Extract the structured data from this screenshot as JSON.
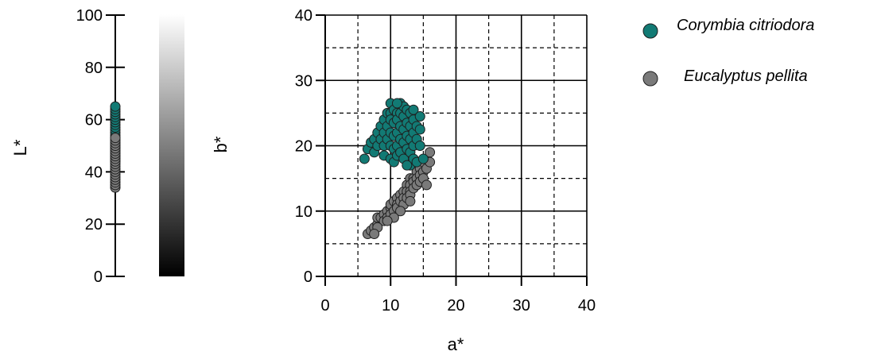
{
  "colors": {
    "corymbia": "#127a74",
    "eucalyptus": "#7a7a7a",
    "marker_edge": "#1f1f1f",
    "grid": "#000000"
  },
  "chart_data": [
    {
      "type": "scatter",
      "id": "lightness-strip",
      "ylabel": "L*",
      "ylim": [
        0,
        100
      ],
      "yticks": [
        0,
        20,
        40,
        60,
        80,
        100
      ],
      "grid": false,
      "series": [
        {
          "name": "Corymbia citriodora",
          "color": "#127a74",
          "values": [
            44,
            45,
            46,
            47,
            48,
            49,
            50,
            51,
            52,
            53,
            54,
            55,
            56,
            57,
            58,
            59,
            60,
            61,
            62,
            63,
            64,
            65
          ]
        },
        {
          "name": "Eucalyptus pellita",
          "color": "#7a7a7a",
          "values": [
            34,
            35,
            36,
            37,
            38,
            39,
            40,
            41,
            42,
            43,
            44,
            45,
            46,
            47,
            48,
            49,
            50,
            51,
            52,
            53
          ]
        }
      ]
    },
    {
      "type": "heatmap",
      "id": "b-colorbar",
      "ylabel": "b*",
      "colormap": "grayscale",
      "direction": "black at bottom, white at top"
    },
    {
      "type": "scatter",
      "id": "ab-scatter",
      "xlabel": "a*",
      "ylabel": "",
      "xlim": [
        0,
        40
      ],
      "ylim": [
        0,
        40
      ],
      "xticks": [
        0,
        10,
        20,
        30,
        40
      ],
      "yticks": [
        0,
        10,
        20,
        30,
        40
      ],
      "grid": "solid major lines every 10, dashed minor lines every 5",
      "legend": "top-right, outside the plot",
      "series": [
        {
          "name": "Corymbia citriodora",
          "color": "#127a74",
          "points": [
            [
              6,
              18
            ],
            [
              6.5,
              19.5
            ],
            [
              7,
              20.5
            ],
            [
              7.5,
              21
            ],
            [
              7.5,
              19
            ],
            [
              8,
              22
            ],
            [
              8,
              20
            ],
            [
              8.5,
              23
            ],
            [
              8.5,
              21
            ],
            [
              9,
              24
            ],
            [
              9,
              22
            ],
            [
              9,
              20
            ],
            [
              9,
              18.5
            ],
            [
              9.5,
              25
            ],
            [
              9.5,
              23
            ],
            [
              9.5,
              21
            ],
            [
              10,
              26.5
            ],
            [
              10,
              25
            ],
            [
              10,
              24
            ],
            [
              10,
              22
            ],
            [
              10,
              20
            ],
            [
              10,
              18
            ],
            [
              10.5,
              25.5
            ],
            [
              10.5,
              23.5
            ],
            [
              10.5,
              21.5
            ],
            [
              10.5,
              19.5
            ],
            [
              10.5,
              17.5
            ],
            [
              11,
              25
            ],
            [
              11,
              24
            ],
            [
              11,
              22
            ],
            [
              11,
              20
            ],
            [
              11,
              18.5
            ],
            [
              11.5,
              26.5
            ],
            [
              11.5,
              25
            ],
            [
              11.5,
              23
            ],
            [
              11.5,
              21
            ],
            [
              11.5,
              19
            ],
            [
              12,
              26
            ],
            [
              12,
              24.5
            ],
            [
              12,
              22.5
            ],
            [
              12,
              20.5
            ],
            [
              12,
              18
            ],
            [
              12.5,
              25.5
            ],
            [
              12.5,
              23.5
            ],
            [
              12.5,
              21.5
            ],
            [
              12.5,
              19.5
            ],
            [
              13,
              25
            ],
            [
              13,
              23
            ],
            [
              13,
              21
            ],
            [
              13,
              19
            ],
            [
              13,
              17
            ],
            [
              13.5,
              25.5
            ],
            [
              13.5,
              24
            ],
            [
              13.5,
              22
            ],
            [
              13.5,
              20
            ],
            [
              13.5,
              18
            ],
            [
              14,
              23
            ],
            [
              14,
              21
            ],
            [
              14,
              17.5
            ],
            [
              14.5,
              24.5
            ],
            [
              14.5,
              22.5
            ],
            [
              14.5,
              20
            ],
            [
              15,
              18
            ],
            [
              11,
              26.5
            ],
            [
              12.5,
              17
            ]
          ]
        },
        {
          "name": "Eucalyptus pellita",
          "color": "#7a7a7a",
          "points": [
            [
              6.5,
              6.5
            ],
            [
              7,
              7
            ],
            [
              7.5,
              7.5
            ],
            [
              8,
              8
            ],
            [
              8,
              9
            ],
            [
              8.5,
              9
            ],
            [
              9,
              9.5
            ],
            [
              9,
              8.5
            ],
            [
              9.5,
              10
            ],
            [
              9.5,
              9
            ],
            [
              10,
              10.5
            ],
            [
              10,
              9.5
            ],
            [
              10,
              11
            ],
            [
              10.5,
              11.5
            ],
            [
              10.5,
              10
            ],
            [
              11,
              12
            ],
            [
              11,
              11
            ],
            [
              11,
              10.5
            ],
            [
              11.5,
              12.5
            ],
            [
              11.5,
              11.5
            ],
            [
              12,
              13
            ],
            [
              12,
              12
            ],
            [
              12,
              11
            ],
            [
              12.5,
              14
            ],
            [
              12.5,
              13
            ],
            [
              12.5,
              12
            ],
            [
              13,
              15
            ],
            [
              13,
              14
            ],
            [
              13,
              13
            ],
            [
              13,
              12.5
            ],
            [
              13.5,
              15
            ],
            [
              13.5,
              14.5
            ],
            [
              13.5,
              13.5
            ],
            [
              14,
              16
            ],
            [
              14,
              15
            ],
            [
              14,
              14
            ],
            [
              14.5,
              16.5
            ],
            [
              14.5,
              15.5
            ],
            [
              14.5,
              14.5
            ],
            [
              15,
              17.5
            ],
            [
              15,
              16
            ],
            [
              15,
              15
            ],
            [
              15.5,
              18
            ],
            [
              15.5,
              16.5
            ],
            [
              16,
              19
            ],
            [
              16,
              17.5
            ],
            [
              15.5,
              14
            ],
            [
              13,
              11.5
            ],
            [
              11.5,
              10
            ],
            [
              10.5,
              9
            ],
            [
              9.5,
              8.5
            ],
            [
              8,
              7.5
            ],
            [
              7.5,
              6.5
            ]
          ]
        }
      ]
    }
  ],
  "legend": {
    "items": [
      {
        "label": "Corymbia citriodora",
        "color": "#127a74"
      },
      {
        "label": "Eucalyptus pellita",
        "color": "#7a7a7a"
      }
    ]
  }
}
